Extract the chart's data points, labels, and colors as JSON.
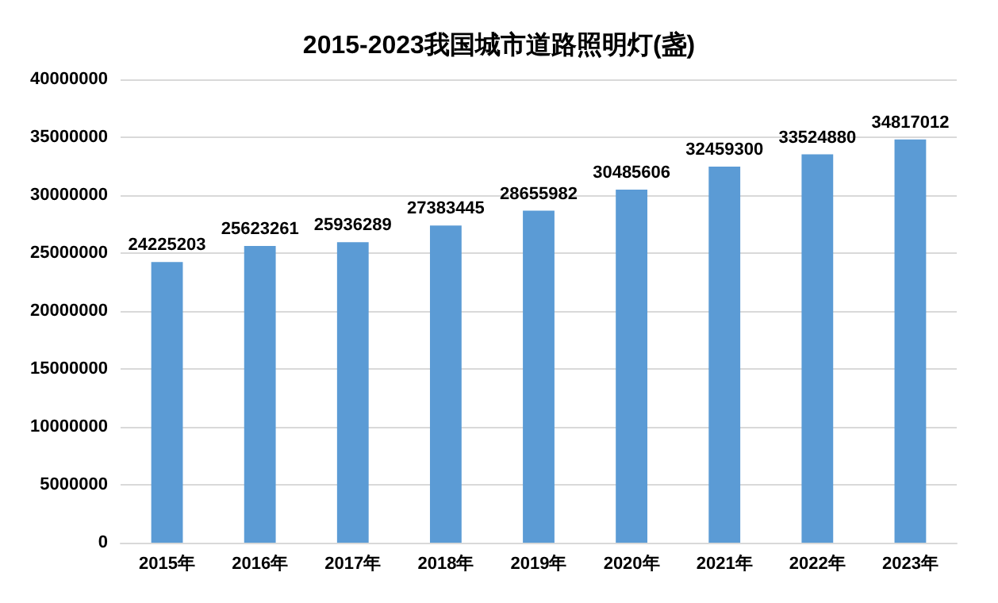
{
  "chart_data": {
    "type": "bar",
    "title": "2015-2023我国城市道路照明灯(盏)",
    "categories": [
      "2015年",
      "2016年",
      "2017年",
      "2018年",
      "2019年",
      "2020年",
      "2021年",
      "2022年",
      "2023年"
    ],
    "values": [
      24225203,
      25623261,
      25936289,
      27383445,
      28655982,
      30485606,
      32459300,
      33524880,
      34817012
    ],
    "color": "#5b9bd5",
    "ylim": [
      0,
      40000000
    ],
    "yticks": [
      0,
      5000000,
      10000000,
      15000000,
      20000000,
      25000000,
      30000000,
      35000000,
      40000000
    ],
    "grid": "y",
    "data_labels": true
  }
}
